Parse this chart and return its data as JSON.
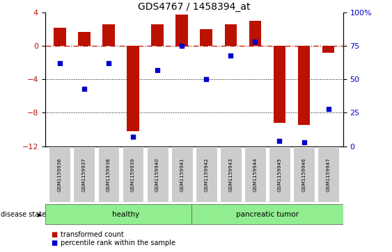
{
  "title": "GDS4767 / 1458394_at",
  "samples": [
    "GSM1159936",
    "GSM1159937",
    "GSM1159938",
    "GSM1159939",
    "GSM1159940",
    "GSM1159941",
    "GSM1159942",
    "GSM1159943",
    "GSM1159944",
    "GSM1159945",
    "GSM1159946",
    "GSM1159947"
  ],
  "bar_values": [
    2.2,
    1.7,
    2.6,
    -10.2,
    2.6,
    3.8,
    2.0,
    2.6,
    3.0,
    -9.2,
    -9.5,
    -0.8
  ],
  "dot_values": [
    62,
    43,
    62,
    7,
    57,
    75,
    50,
    68,
    78,
    4,
    3,
    28
  ],
  "bar_color": "#bb1100",
  "dot_color": "#0000cc",
  "ylim": [
    -12,
    4
  ],
  "y2lim": [
    0,
    100
  ],
  "yticks": [
    4,
    0,
    -4,
    -8,
    -12
  ],
  "y2ticks": [
    100,
    75,
    50,
    25,
    0
  ],
  "dotted_lines": [
    -4,
    -8
  ],
  "healthy_count": 6,
  "group_label_healthy": "healthy",
  "group_label_tumor": "pancreatic tumor",
  "bar_width": 0.5,
  "legend_red_label": "transformed count",
  "legend_blue_label": "percentile rank within the sample",
  "disease_state_label": "disease state",
  "green_color": "#90ee90",
  "grey_box_color": "#cccccc"
}
